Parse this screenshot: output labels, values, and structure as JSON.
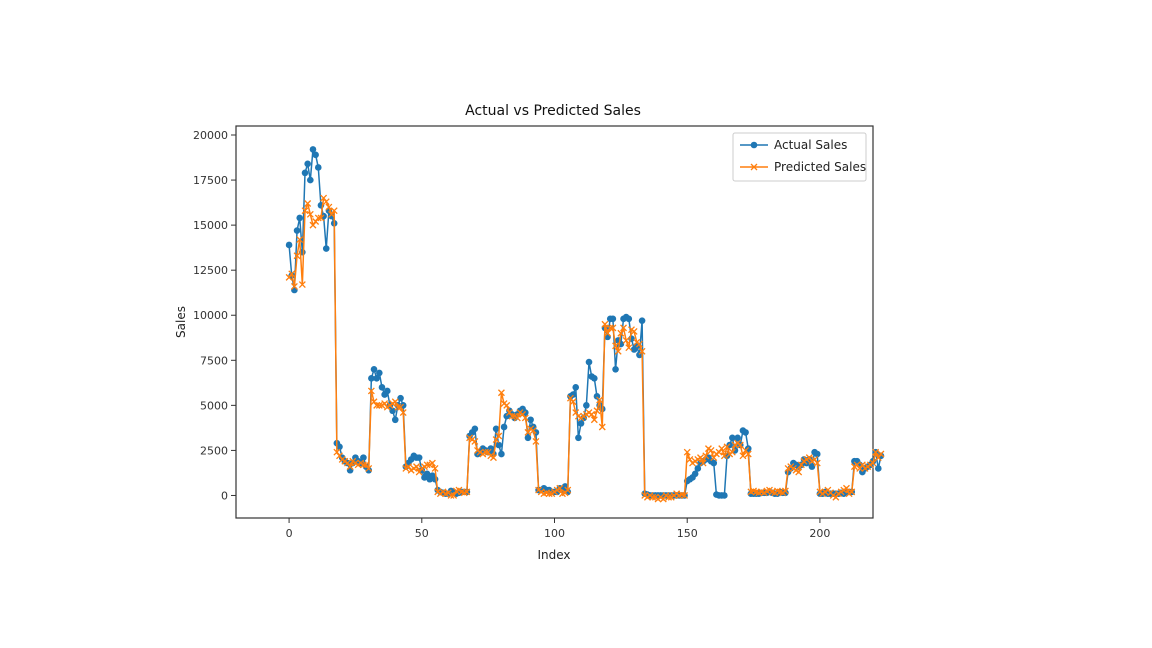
{
  "chart_data": {
    "type": "line",
    "title": "Actual vs Predicted Sales",
    "xlabel": "Index",
    "ylabel": "Sales",
    "xlim": [
      -20,
      220
    ],
    "ylim": [
      -1250,
      20500
    ],
    "xticks": [
      0,
      50,
      100,
      150,
      200
    ],
    "yticks": [
      0,
      2500,
      5000,
      7500,
      10000,
      12500,
      15000,
      17500,
      20000
    ],
    "grid": false,
    "legend": "top-right",
    "series": [
      {
        "name": "Actual Sales",
        "color": "#1f77b4",
        "marker": "circle",
        "values": [
          13900,
          12200,
          11400,
          14700,
          15400,
          13500,
          17900,
          18400,
          17500,
          19200,
          18900,
          18200,
          16100,
          15500,
          13700,
          15800,
          15500,
          15100,
          2900,
          2700,
          2100,
          1900,
          1800,
          1400,
          1800,
          2100,
          1900,
          1800,
          2100,
          1600,
          1400,
          6500,
          7000,
          6500,
          6800,
          6000,
          5600,
          5800,
          5000,
          4700,
          4200,
          5000,
          5400,
          5000,
          1600,
          1800,
          2000,
          2200,
          2100,
          2100,
          1400,
          1000,
          1200,
          900,
          1100,
          900,
          300,
          200,
          150,
          100,
          100,
          250,
          200,
          100,
          150,
          200,
          200,
          200,
          3300,
          3500,
          3700,
          2300,
          2400,
          2600,
          2500,
          2400,
          2600,
          2300,
          3700,
          2800,
          2300,
          3800,
          4400,
          4700,
          4500,
          4300,
          4500,
          4700,
          4800,
          4600,
          3200,
          4200,
          3800,
          3500,
          300,
          300,
          400,
          300,
          300,
          200,
          200,
          200,
          400,
          300,
          500,
          200,
          5500,
          5600,
          6000,
          3200,
          4000,
          4300,
          5000,
          7400,
          6600,
          6500,
          5500,
          5000,
          4800,
          9300,
          8800,
          9800,
          9800,
          7000,
          8600,
          8400,
          9800,
          9900,
          9800,
          8700,
          8100,
          8300,
          7800,
          9700,
          100,
          50,
          0,
          0,
          0,
          0,
          0,
          0,
          0,
          0,
          0,
          0,
          0,
          0,
          0,
          0,
          800,
          900,
          1000,
          1200,
          1500,
          1800,
          1900,
          2000,
          2100,
          1900,
          1800,
          50,
          0,
          0,
          0,
          2200,
          2800,
          3200,
          2500,
          3200,
          2800,
          3600,
          3500,
          2600,
          100,
          100,
          100,
          100,
          150,
          150,
          150,
          200,
          150,
          100,
          100,
          200,
          150,
          150,
          1300,
          1500,
          1800,
          1700,
          1600,
          1700,
          2000,
          1800,
          2000,
          1600,
          2400,
          2300,
          100,
          100,
          200,
          100,
          100,
          100,
          100,
          100,
          150,
          100,
          200,
          200,
          200,
          1900,
          1900,
          1700,
          1300,
          1500,
          1600,
          1700,
          1900,
          2400,
          1500,
          2200
        ]
      },
      {
        "name": "Predicted Sales",
        "color": "#ff7f0e",
        "marker": "x",
        "values": [
          12100,
          12300,
          11600,
          13300,
          14200,
          11700,
          15800,
          16200,
          15600,
          15000,
          15200,
          15400,
          15400,
          16500,
          16300,
          16000,
          15600,
          15800,
          2400,
          2200,
          2000,
          1900,
          1800,
          1600,
          1900,
          1800,
          1700,
          1800,
          1700,
          1700,
          1500,
          5800,
          5200,
          5000,
          5000,
          5000,
          5100,
          4900,
          5000,
          5100,
          5200,
          4900,
          4900,
          4600,
          1500,
          1600,
          1400,
          1500,
          1600,
          1300,
          1500,
          1600,
          1700,
          1700,
          1800,
          1500,
          200,
          100,
          200,
          100,
          150,
          0,
          0,
          250,
          300,
          200,
          150,
          200,
          3200,
          3100,
          3000,
          2500,
          2400,
          2300,
          2400,
          2400,
          2200,
          2100,
          3100,
          3300,
          5700,
          5100,
          5000,
          4600,
          4400,
          4400,
          4300,
          4600,
          4500,
          4300,
          3500,
          3700,
          3600,
          3000,
          300,
          200,
          100,
          150,
          100,
          100,
          200,
          300,
          400,
          100,
          150,
          300,
          5400,
          5200,
          4600,
          4400,
          4300,
          4400,
          4500,
          4600,
          4500,
          4200,
          4700,
          5300,
          3800,
          9500,
          9000,
          9300,
          9300,
          8300,
          8000,
          9000,
          9300,
          8600,
          8200,
          9200,
          9100,
          8500,
          8400,
          8000,
          0,
          -100,
          0,
          -100,
          -100,
          -200,
          -100,
          -200,
          0,
          -100,
          -100,
          0,
          100,
          0,
          50,
          0,
          2400,
          2000,
          1800,
          1900,
          2000,
          2100,
          1800,
          2200,
          2600,
          2500,
          2100,
          2300,
          2400,
          2600,
          2200,
          2700,
          2300,
          2400,
          2800,
          2900,
          2800,
          2200,
          2500,
          2300,
          200,
          250,
          200,
          150,
          200,
          150,
          250,
          300,
          200,
          150,
          250,
          200,
          150,
          250,
          1500,
          1600,
          1500,
          1400,
          1300,
          1700,
          1900,
          2000,
          2100,
          1900,
          2000,
          1800,
          200,
          100,
          200,
          300,
          150,
          0,
          -100,
          100,
          200,
          300,
          400,
          100,
          200,
          1600,
          1700,
          1500,
          1700,
          1500,
          1600,
          1700,
          1800,
          2400,
          2100,
          2300
        ]
      }
    ]
  }
}
